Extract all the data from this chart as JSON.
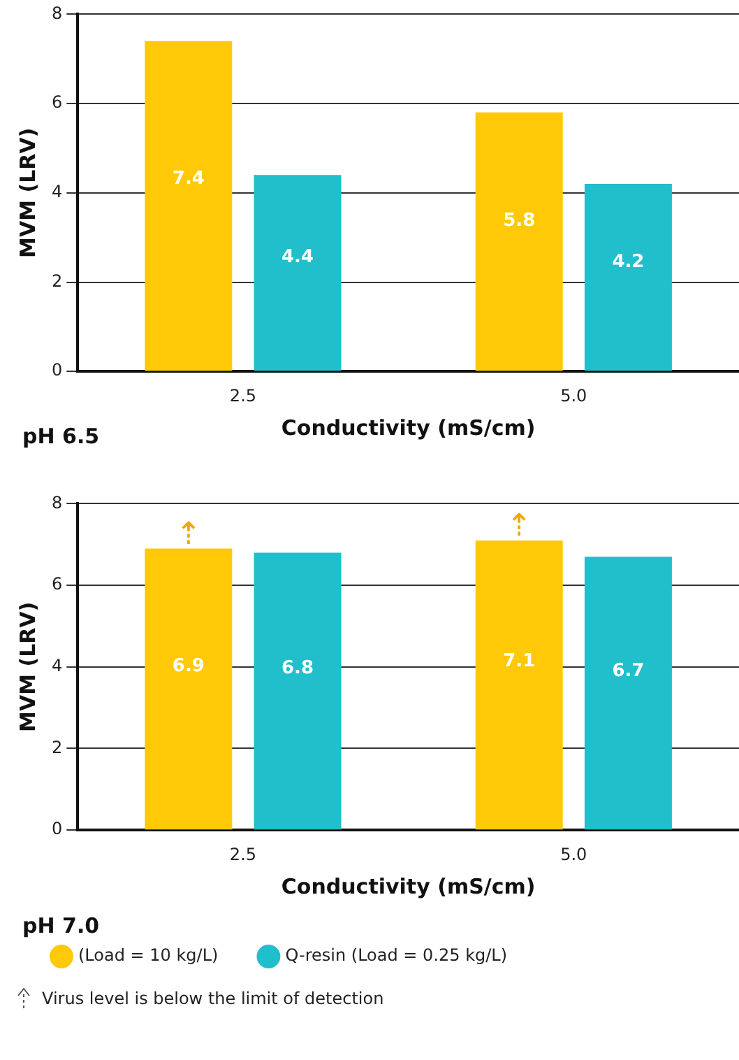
{
  "chart_data": [
    {
      "type": "bar",
      "xlabel": "Conductivity (mS/cm)",
      "ylabel": "MVM (LRV)",
      "categories": [
        "2.5",
        "5.0"
      ],
      "series": [
        {
          "color": "#ffc907",
          "values": [
            7.4,
            5.8
          ]
        },
        {
          "color": "#21becc",
          "values": [
            4.4,
            4.2
          ]
        }
      ],
      "ylim": [
        0,
        8
      ],
      "yticks": [
        0,
        2,
        4,
        6,
        8
      ],
      "grid": "y",
      "legend": false,
      "data_labels": true,
      "annotations": [
        "pH 6.5"
      ]
    },
    {
      "type": "bar",
      "xlabel": "Conductivity (mS/cm)",
      "ylabel": "MVM (LRV)",
      "categories": [
        "2.5",
        "5.0"
      ],
      "series": [
        {
          "name": "(Load = 10 kg/L)",
          "color": "#ffc907",
          "values": [
            6.9,
            7.1
          ]
        },
        {
          "name": "Q-resin (Load = 0.25 kg/L)",
          "color": "#21becc",
          "values": [
            6.8,
            6.7
          ]
        }
      ],
      "ylim": [
        0,
        8
      ],
      "yticks": [
        0,
        2,
        4,
        6,
        8
      ],
      "grid": "y",
      "legend": "bottom",
      "data_labels": true,
      "annotations": [
        "pH 7.0",
        "⇡",
        "⇡",
        "Virus level is below the limit of detection"
      ]
    }
  ]
}
